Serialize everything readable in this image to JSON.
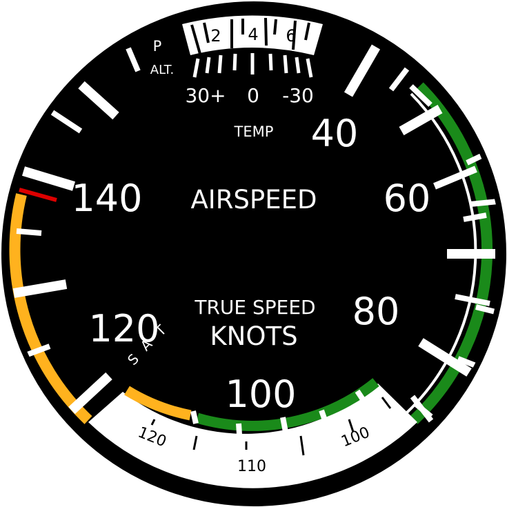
{
  "instrument": {
    "title": "AIRSPEED",
    "subtitle": "TRUE SPEED",
    "units": "KNOTS",
    "temp_label": "TEMP",
    "pressure_alt_label_top": "P",
    "pressure_alt_label_bottom": "ALT.",
    "tas_letters": [
      "T",
      "A",
      "S"
    ]
  },
  "main_scale": {
    "labels": [
      "40",
      "60",
      "80",
      "100",
      "120",
      "140"
    ]
  },
  "temp_scale": {
    "labels": [
      "30+",
      "0",
      "-30"
    ]
  },
  "altitude_window": {
    "labels": [
      "2",
      "4",
      "6"
    ]
  },
  "tas_scale": {
    "labels": [
      "120",
      "110",
      "100"
    ]
  },
  "colors": {
    "dial": "#000000",
    "markings": "#ffffff",
    "normal_arc": "#1a8a1a",
    "caution_arc": "#ffb21e",
    "never_exceed": "#dd0000"
  }
}
